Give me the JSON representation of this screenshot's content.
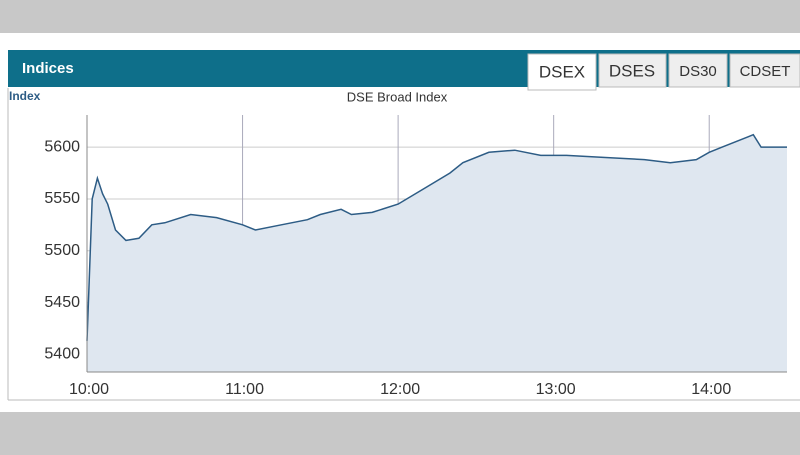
{
  "header": {
    "title": "Indices",
    "tabs": [
      "DSEX",
      "DSES",
      "DS30",
      "CDSET"
    ]
  },
  "chart_data": {
    "type": "area",
    "title": "DSE Broad Index",
    "ylabel": "Index",
    "x": [
      "10:00",
      "10:02",
      "10:04",
      "10:06",
      "10:08",
      "10:11",
      "10:15",
      "10:20",
      "10:25",
      "10:30",
      "10:40",
      "10:50",
      "11:00",
      "11:05",
      "11:15",
      "11:25",
      "11:30",
      "11:38",
      "11:42",
      "11:50",
      "12:00",
      "12:10",
      "12:20",
      "12:25",
      "12:35",
      "12:45",
      "12:55",
      "13:05",
      "13:20",
      "13:35",
      "13:45",
      "13:55",
      "14:00",
      "14:05",
      "14:15",
      "14:17",
      "14:20",
      "14:30"
    ],
    "series": [
      {
        "name": "DSEX",
        "color": "#2d5c85",
        "fill": "#dfe7f0",
        "values": [
          5413,
          5550,
          5570,
          5555,
          5545,
          5520,
          5510,
          5512,
          5525,
          5527,
          5535,
          5532,
          5525,
          5520,
          5525,
          5530,
          5535,
          5540,
          5535,
          5537,
          5545,
          5560,
          5575,
          5585,
          5595,
          5597,
          5592,
          5592,
          5590,
          5588,
          5585,
          5588,
          5595,
          5600,
          5610,
          5612,
          5600,
          5600
        ]
      }
    ],
    "xlim": [
      "10:00",
      "14:30"
    ],
    "xticks": [
      "10:00",
      "11:00",
      "12:00",
      "13:00",
      "14:00"
    ],
    "ylim": [
      5383,
      5631
    ],
    "yticks": [
      5400,
      5450,
      5500,
      5550,
      5600
    ],
    "grid": true
  }
}
